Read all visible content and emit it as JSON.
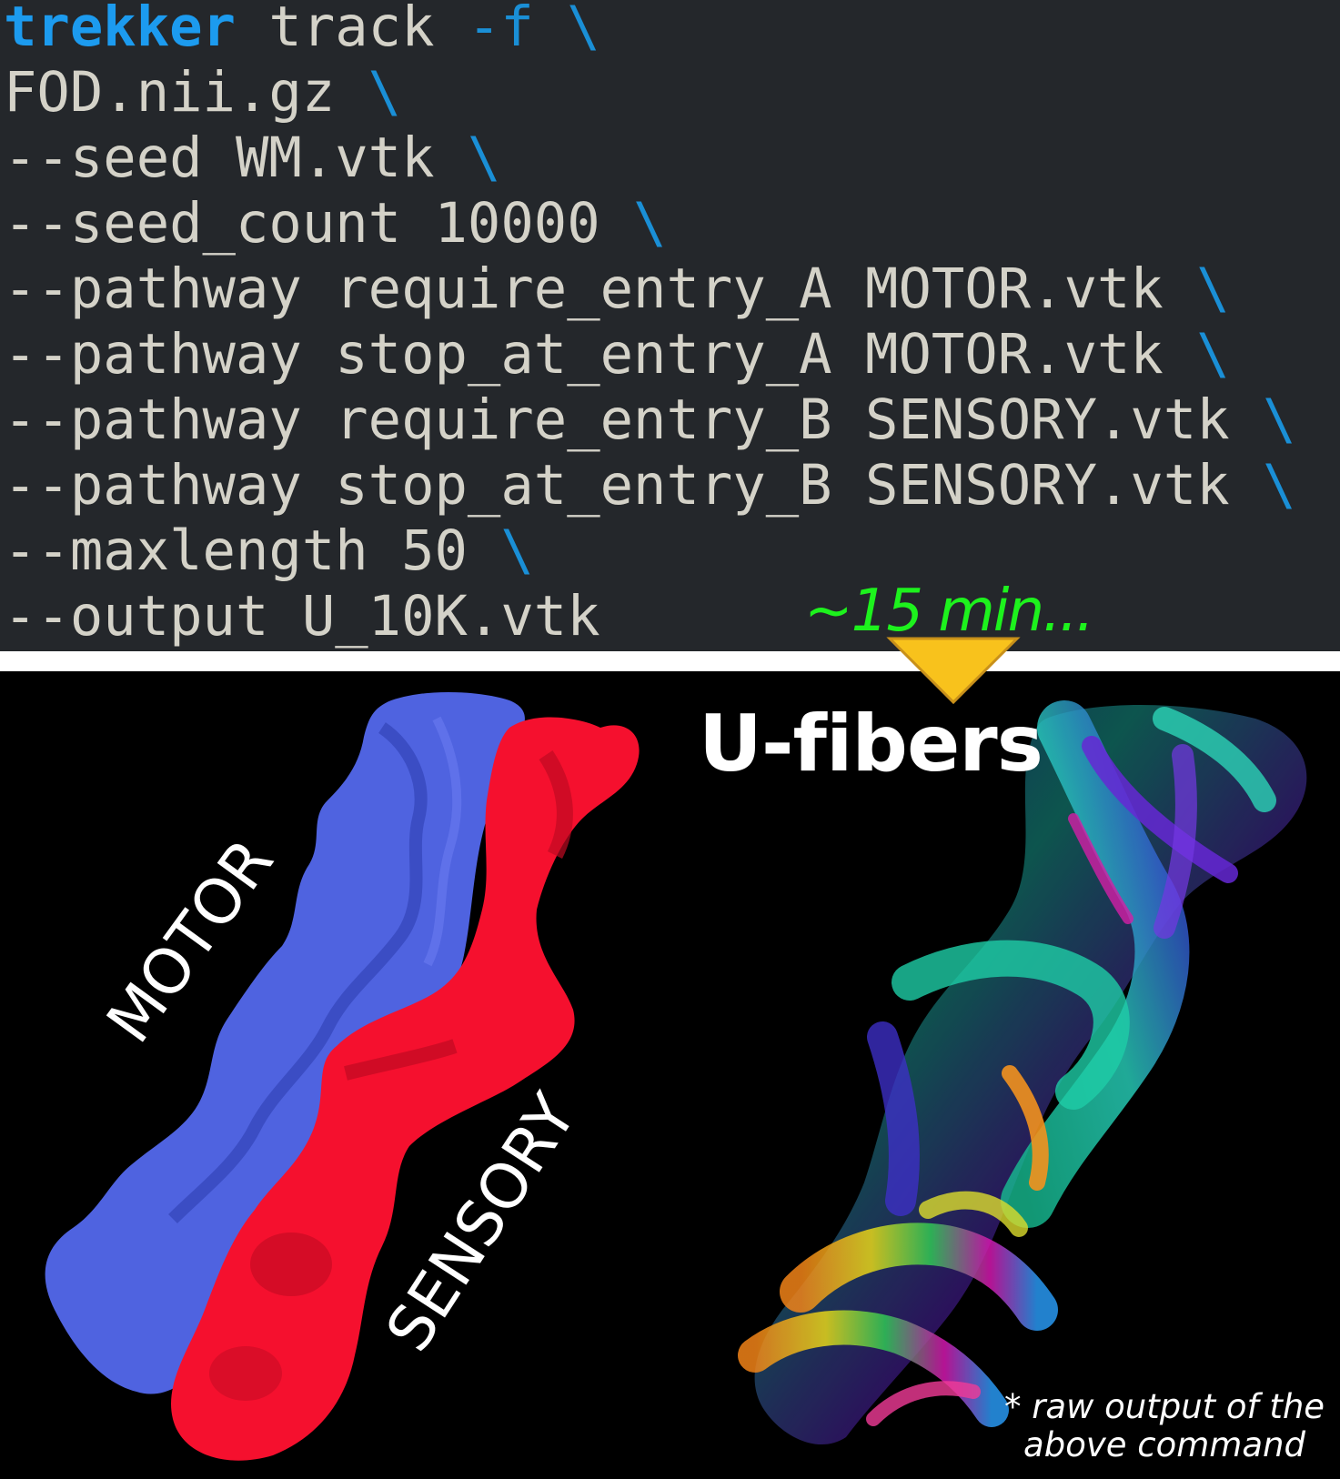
{
  "command": {
    "lines": [
      {
        "program": "trekker",
        "text": " track ",
        "flag": "-f",
        "cont": " \\"
      },
      {
        "text": "FOD.nii.gz ",
        "cont": "\\"
      },
      {
        "text": "--seed WM.vtk ",
        "cont": "\\"
      },
      {
        "text": "--seed_count 10000 ",
        "cont": "\\"
      },
      {
        "text": "--pathway require_entry_A MOTOR.vtk ",
        "cont": "\\"
      },
      {
        "text": "--pathway stop_at_entry_A MOTOR.vtk ",
        "cont": "\\"
      },
      {
        "text": "--pathway require_entry_B SENSORY.vtk ",
        "cont": "\\"
      },
      {
        "text": "--pathway stop_at_entry_B SENSORY.vtk ",
        "cont": "\\"
      },
      {
        "text": "--maxlength 50 ",
        "cont": "\\"
      },
      {
        "text": "--output U_10K.vtk",
        "cont": ""
      }
    ]
  },
  "timing_label": "~15 min...",
  "result_title": "U-fibers",
  "labels": {
    "motor": "MOTOR",
    "sensory": "SENSORY"
  },
  "footnote": {
    "line1": "* raw output of the",
    "line2": "above command"
  },
  "colors": {
    "terminal_bg": "#24272b",
    "command_blue": "#1c9bef",
    "timing_green": "#1df21d",
    "arrow_yellow": "#f8c21c",
    "motor_blue": "#4f63e0",
    "sensory_red": "#f5102e"
  }
}
